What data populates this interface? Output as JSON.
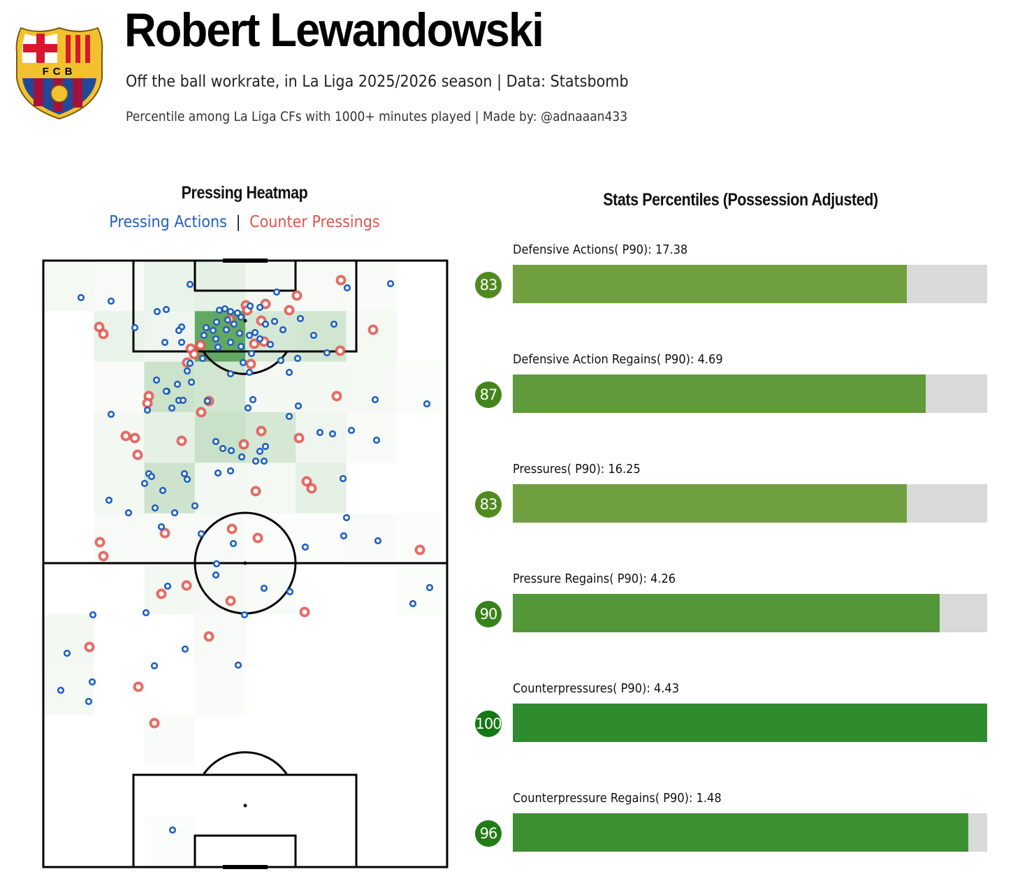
{
  "header": {
    "player_name": "Robert Lewandowski",
    "subtitle": "Off the ball workrate, in La Liga 2025/2026 season | Data: Statsbomb",
    "subtitle2": "Percentile among La Liga CFs with 1000+ minutes played | Made by: @adnaaan433",
    "crest_text": "FCB",
    "crest_colors": {
      "blue": "#1f4a9c",
      "garnet": "#a3123c",
      "gold": "#f2c12e",
      "red": "#d7172f"
    }
  },
  "heatmap": {
    "title": "Pressing Heatmap",
    "legend": {
      "pressing": "Pressing Actions",
      "separator": "|",
      "counter": "Counter Pressings"
    },
    "colors": {
      "pressing": "#1f5fc2",
      "counter": "#e0544c",
      "heat": "#2e8b2e"
    }
  },
  "stats": {
    "title": "Stats Percentiles (Possession Adjusted)",
    "items": [
      {
        "label": "Defensive Actions( P90): 17.38",
        "percentile": 83,
        "badge": "83"
      },
      {
        "label": "Defensive Action Regains( P90): 4.69",
        "percentile": 87,
        "badge": "87"
      },
      {
        "label": "Pressures( P90): 16.25",
        "percentile": 83,
        "badge": "83"
      },
      {
        "label": "Pressure Regains( P90): 4.26",
        "percentile": 90,
        "badge": "90"
      },
      {
        "label": "Counterpressures( P90): 4.43",
        "percentile": 100,
        "badge": "100"
      },
      {
        "label": "Counterpressure Regains( P90): 1.48",
        "percentile": 96,
        "badge": "96"
      }
    ]
  },
  "chart_data": [
    {
      "type": "heatmap",
      "title": "Pressing Heatmap",
      "series": [
        {
          "name": "Pressing Actions",
          "points": "pressing action locations (scatter, blue)"
        },
        {
          "name": "Counter Pressings",
          "points": "counter pressing locations (scatter, red)"
        }
      ],
      "grid": {
        "cols": 8,
        "rows": 12
      },
      "intensity": [
        [
          0.05,
          0.04,
          0.1,
          0.12,
          0.06,
          0.04,
          0.03,
          0.0
        ],
        [
          0.0,
          0.1,
          0.08,
          0.75,
          0.2,
          0.22,
          0.05,
          0.0
        ],
        [
          0.0,
          0.03,
          0.25,
          0.22,
          0.06,
          0.06,
          0.05,
          0.02
        ],
        [
          0.0,
          0.06,
          0.12,
          0.26,
          0.2,
          0.08,
          0.03,
          0.0
        ],
        [
          0.0,
          0.06,
          0.24,
          0.06,
          0.05,
          0.12,
          0.0,
          0.0
        ],
        [
          0.0,
          0.04,
          0.03,
          0.04,
          0.02,
          0.02,
          0.03,
          0.02
        ],
        [
          0.0,
          0.0,
          0.06,
          0.05,
          0.03,
          0.0,
          0.0,
          0.02
        ],
        [
          0.06,
          0.0,
          0.0,
          0.04,
          0.0,
          0.0,
          0.0,
          0.0
        ],
        [
          0.05,
          0.0,
          0.0,
          0.03,
          0.0,
          0.0,
          0.0,
          0.0
        ],
        [
          0.0,
          0.0,
          0.03,
          0.0,
          0.0,
          0.0,
          0.0,
          0.0
        ],
        [
          0.0,
          0.0,
          0.0,
          0.0,
          0.0,
          0.0,
          0.0,
          0.0
        ],
        [
          0.0,
          0.0,
          0.02,
          0.0,
          0.0,
          0.0,
          0.0,
          0.0
        ]
      ]
    },
    {
      "type": "bar",
      "title": "Stats Percentiles (Possession Adjusted)",
      "categories": [
        "Defensive Actions( P90): 17.38",
        "Defensive Action Regains( P90): 4.69",
        "Pressures( P90): 16.25",
        "Pressure Regains( P90): 4.26",
        "Counterpressures( P90): 4.43",
        "Counterpressure Regains( P90): 1.48"
      ],
      "values": [
        83,
        87,
        83,
        90,
        100,
        96
      ],
      "xlim": [
        0,
        100
      ],
      "orientation": "horizontal"
    }
  ]
}
